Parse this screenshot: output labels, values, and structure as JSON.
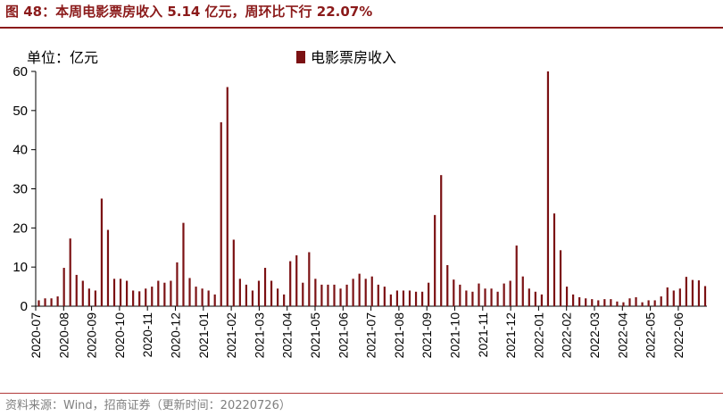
{
  "title": "图 48：本周电影票房收入 5.14 亿元，周环比下行 22.07%",
  "source": "资料来源：Wind，招商证券（更新时间：20220726）",
  "colors": {
    "bar": "#7b1113",
    "title": "#8b1a1a",
    "axis": "#000000"
  },
  "chart_data": {
    "type": "bar",
    "unit_label": "单位：亿元",
    "legend": {
      "position": "top-center",
      "entries": [
        "电影票房收入"
      ]
    },
    "ylim": [
      0,
      60
    ],
    "yticks": [
      0,
      10,
      20,
      30,
      40,
      50,
      60
    ],
    "grid": false,
    "x_tick_labels": [
      "2020-07",
      "2020-08",
      "2020-09",
      "2020-10",
      "2020-11",
      "2020-12",
      "2021-01",
      "2021-02",
      "2021-03",
      "2021-04",
      "2021-05",
      "2021-06",
      "2021-07",
      "2021-08",
      "2021-09",
      "2021-10",
      "2021-11",
      "2021-12",
      "2022-01",
      "2022-02",
      "2022-03",
      "2022-04",
      "2022-05",
      "2022-06"
    ],
    "series": [
      {
        "name": "电影票房收入",
        "values": [
          1.5,
          2.0,
          2.0,
          2.5,
          9.8,
          17.3,
          8.0,
          6.5,
          4.5,
          4.0,
          27.5,
          19.5,
          7.0,
          7.0,
          6.5,
          4.0,
          3.8,
          4.5,
          5.0,
          6.5,
          6.0,
          6.5,
          11.2,
          21.3,
          7.2,
          5.0,
          4.5,
          4.0,
          3.0,
          47.0,
          56.0,
          17.0,
          7.0,
          5.5,
          4.0,
          6.5,
          9.8,
          6.5,
          4.5,
          3.0,
          11.5,
          13.0,
          6.0,
          13.8,
          7.0,
          5.5,
          5.5,
          5.5,
          4.5,
          5.5,
          7.0,
          8.3,
          7.0,
          7.6,
          5.5,
          5.0,
          3.0,
          4.0,
          4.0,
          4.0,
          3.7,
          3.7,
          6.0,
          23.3,
          33.5,
          10.5,
          6.8,
          5.5,
          4.0,
          3.7,
          5.8,
          4.5,
          4.5,
          3.7,
          5.8,
          6.5,
          15.5,
          7.6,
          4.5,
          3.7,
          3.0,
          60.0,
          23.7,
          14.3,
          5.0,
          3.0,
          2.3,
          2.0,
          1.8,
          1.5,
          1.8,
          1.8,
          1.2,
          1.0,
          2.0,
          2.3,
          1.0,
          1.5,
          1.5,
          2.5,
          4.8,
          4.0,
          4.5,
          7.5,
          6.7,
          6.6,
          5.14
        ]
      }
    ]
  }
}
